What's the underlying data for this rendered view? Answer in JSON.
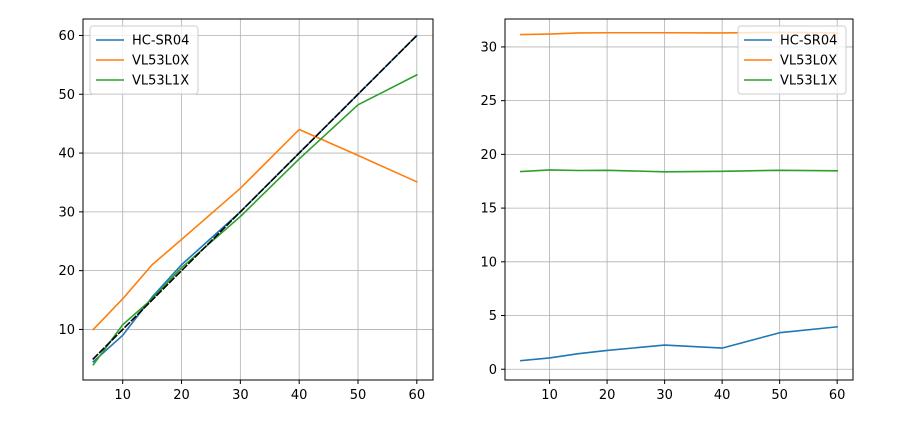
{
  "chart_data": [
    {
      "type": "line",
      "title": "",
      "xlabel": "",
      "ylabel": "",
      "xlim": [
        3.25,
        62.75
      ],
      "ylim": [
        1.4,
        62.8
      ],
      "xticks": [
        10,
        20,
        30,
        40,
        50,
        60
      ],
      "yticks": [
        10,
        20,
        30,
        40,
        50,
        60
      ],
      "grid": true,
      "legend_position": "upper-left",
      "series": [
        {
          "name": "HC-SR04",
          "color": "#1f77b4",
          "dashed": false,
          "in_legend": true,
          "x": [
            5,
            10,
            15,
            20,
            30,
            40,
            50,
            60
          ],
          "y": [
            4.5,
            9,
            15.5,
            21,
            30,
            40,
            50,
            60
          ]
        },
        {
          "name": "VL53L0X",
          "color": "#ff7f0e",
          "dashed": false,
          "in_legend": true,
          "x": [
            5,
            10,
            15,
            20,
            30,
            40,
            50,
            60
          ],
          "y": [
            10,
            15.2,
            21,
            25.3,
            34,
            44,
            39.6,
            35.1
          ]
        },
        {
          "name": "VL53L1X",
          "color": "#2ca02c",
          "dashed": false,
          "in_legend": true,
          "x": [
            5,
            10,
            15,
            20,
            30,
            40,
            50,
            60
          ],
          "y": [
            4.0,
            10.8,
            15.2,
            20.5,
            29.2,
            39.0,
            48.2,
            53.3
          ]
        },
        {
          "name": "",
          "color": "#000000",
          "dashed": true,
          "in_legend": false,
          "x": [
            5,
            60
          ],
          "y": [
            5,
            60
          ]
        }
      ]
    },
    {
      "type": "line",
      "title": "",
      "xlabel": "",
      "ylabel": "",
      "xlim": [
        2.25,
        62.75
      ],
      "ylim": [
        -1.0,
        32.6
      ],
      "xticks": [
        10,
        20,
        30,
        40,
        50,
        60
      ],
      "yticks": [
        0,
        5,
        10,
        15,
        20,
        25,
        30
      ],
      "grid": true,
      "legend_position": "upper-right",
      "series": [
        {
          "name": "HC-SR04",
          "color": "#1f77b4",
          "dashed": false,
          "in_legend": true,
          "x": [
            5,
            10,
            15,
            20,
            30,
            40,
            50,
            60
          ],
          "y": [
            0.8,
            1.05,
            1.45,
            1.75,
            2.25,
            1.97,
            3.4,
            3.95
          ]
        },
        {
          "name": "VL53L0X",
          "color": "#ff7f0e",
          "dashed": false,
          "in_legend": true,
          "x": [
            5,
            10,
            15,
            20,
            30,
            40,
            50,
            60
          ],
          "y": [
            31.15,
            31.2,
            31.3,
            31.32,
            31.32,
            31.3,
            31.35,
            31.3
          ]
        },
        {
          "name": "VL53L1X",
          "color": "#2ca02c",
          "dashed": false,
          "in_legend": true,
          "x": [
            5,
            10,
            15,
            20,
            30,
            40,
            50,
            60
          ],
          "y": [
            18.4,
            18.55,
            18.5,
            18.52,
            18.38,
            18.42,
            18.52,
            18.47
          ]
        }
      ]
    }
  ]
}
